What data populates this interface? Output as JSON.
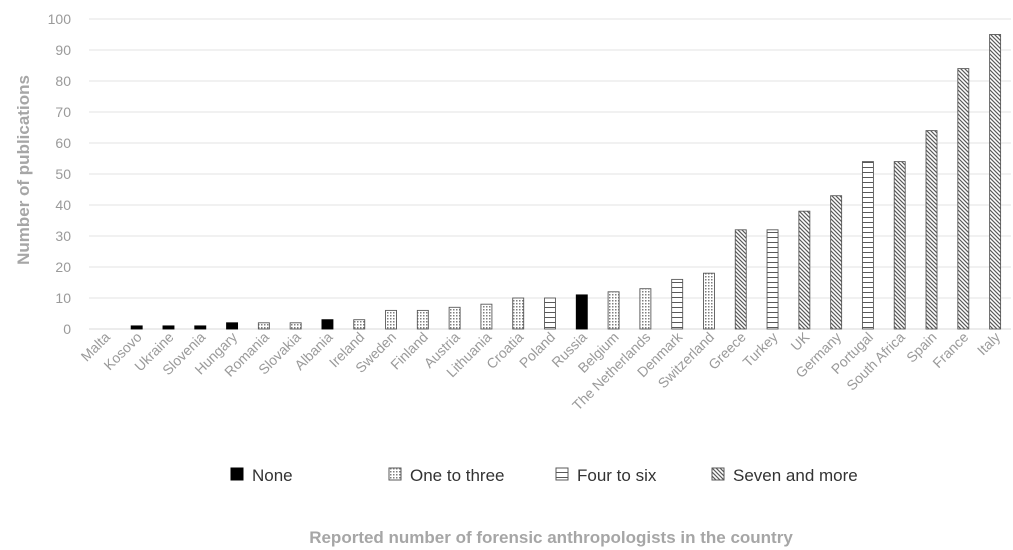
{
  "chart_data": {
    "type": "bar",
    "ylabel": "Number of publications",
    "xlabel": "Reported number of forensic anthropologists in the country",
    "ylim": [
      0,
      100
    ],
    "yticks": [
      0,
      10,
      20,
      30,
      40,
      50,
      60,
      70,
      80,
      90,
      100
    ],
    "grid": true,
    "legend_position": "bottom",
    "categories": [
      "Malta",
      "Kosovo",
      "Ukraine",
      "Slovenia",
      "Hungary",
      "Romania",
      "Slovakia",
      "Albania",
      "Ireland",
      "Sweden",
      "Finland",
      "Austria",
      "Lithuania",
      "Croatia",
      "Poland",
      "Russia",
      "Belgium",
      "The Netherlands",
      "Denmark",
      "Switzerland",
      "Greece",
      "Turkey",
      "UK",
      "Germany",
      "Portugal",
      "South Africa",
      "Spain",
      "France",
      "Italy"
    ],
    "values": [
      0,
      1,
      1,
      1,
      2,
      2,
      2,
      3,
      3,
      6,
      6,
      7,
      8,
      10,
      10,
      11,
      12,
      13,
      16,
      18,
      32,
      32,
      38,
      43,
      54,
      54,
      64,
      84,
      95
    ],
    "groups": [
      "None",
      "None",
      "None",
      "None",
      "None",
      "One to three",
      "One to three",
      "None",
      "One to three",
      "One to three",
      "One to three",
      "One to three",
      "One to three",
      "One to three",
      "Four to six",
      "None",
      "One to three",
      "One to three",
      "Four to six",
      "One to three",
      "Seven and more",
      "Four to six",
      "Seven and more",
      "Seven and more",
      "Four to six",
      "Seven and more",
      "Seven and more",
      "Seven and more",
      "Seven and more"
    ],
    "legend": [
      {
        "name": "None",
        "pattern": "solid",
        "color": "#000000"
      },
      {
        "name": "One to three",
        "pattern": "dots",
        "color": "#595959"
      },
      {
        "name": "Four to six",
        "pattern": "horizontal-lines",
        "color": "#595959"
      },
      {
        "name": "Seven and more",
        "pattern": "diagonal-lines",
        "color": "#595959"
      }
    ]
  }
}
